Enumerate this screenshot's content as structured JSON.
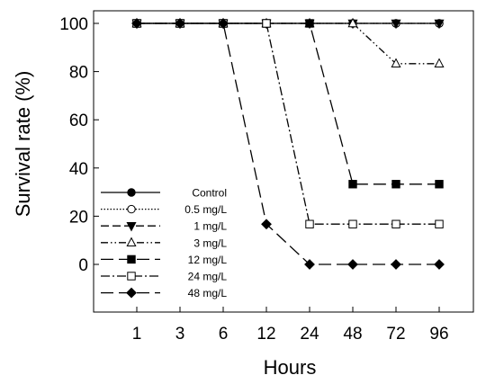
{
  "chart_data": {
    "type": "line",
    "xlabel": "Hours",
    "ylabel": "Survival rate (%)",
    "categories": [
      "1",
      "3",
      "6",
      "12",
      "24",
      "48",
      "72",
      "96"
    ],
    "ylim": [
      0,
      100
    ],
    "yticks": [
      0,
      20,
      40,
      60,
      80,
      100
    ],
    "grid": false,
    "legend_position": "bottom-left",
    "series": [
      {
        "name": "Control",
        "values": [
          100,
          100,
          100,
          100,
          100,
          100,
          100,
          100
        ],
        "marker": "circle-filled",
        "dash": "solid"
      },
      {
        "name": "0.5 mg/L",
        "values": [
          100,
          100,
          100,
          100,
          100,
          100,
          100,
          100
        ],
        "marker": "circle-open",
        "dash": "dotted"
      },
      {
        "name": "1 mg/L",
        "values": [
          100,
          100,
          100,
          100,
          100,
          100,
          100,
          100
        ],
        "marker": "triangle-down-filled",
        "dash": "dashed"
      },
      {
        "name": "3 mg/L",
        "values": [
          100,
          100,
          100,
          100,
          100,
          100,
          83.3,
          83.3
        ],
        "marker": "triangle-up-open",
        "dash": "dash-dot-dot"
      },
      {
        "name": "12 mg/L",
        "values": [
          100,
          100,
          100,
          100,
          100,
          33.3,
          33.3,
          33.3
        ],
        "marker": "square-filled",
        "dash": "long-dash"
      },
      {
        "name": "24 mg/L",
        "values": [
          100,
          100,
          100,
          100,
          16.7,
          16.7,
          16.7,
          16.7
        ],
        "marker": "square-open",
        "dash": "dash-dot"
      },
      {
        "name": "48 mg/L",
        "values": [
          100,
          100,
          100,
          16.7,
          0,
          0,
          0,
          0
        ],
        "marker": "diamond-filled",
        "dash": "long-dash"
      }
    ]
  }
}
